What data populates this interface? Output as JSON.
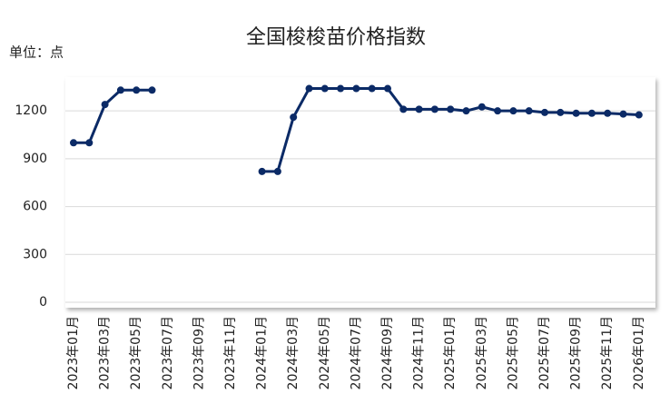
{
  "chart_data": {
    "type": "line",
    "title": "全国梭梭苗价格指数",
    "unit_label": "单位：点",
    "categories": [
      "2023年01月",
      null,
      "2023年03月",
      null,
      "2023年05月",
      null,
      "2023年07月",
      null,
      "2023年09月",
      null,
      "2023年11月",
      null,
      "2024年01月",
      null,
      "2024年03月",
      null,
      "2024年05月",
      null,
      "2024年07月",
      null,
      "2024年09月",
      null,
      "2024年11月",
      null,
      "2025年01月",
      null,
      "2025年03月",
      null,
      "2025年05月",
      null,
      "2025年07月",
      null,
      "2025年09月",
      null,
      "2025年11月",
      null,
      "2026年01月"
    ],
    "series": [
      {
        "name": "全国梭梭苗价格指数",
        "color": "#0b2a66",
        "values": [
          1000,
          1000,
          1240,
          1330,
          1330,
          1330,
          null,
          null,
          null,
          null,
          null,
          null,
          820,
          820,
          1160,
          1340,
          1340,
          1340,
          1340,
          1340,
          1340,
          1210,
          1210,
          1210,
          1210,
          1200,
          1225,
          1200,
          1200,
          1200,
          1190,
          1190,
          1185,
          1185,
          1185,
          1180,
          1175
        ]
      }
    ],
    "ylim": [
      0,
      1400
    ],
    "yticks": [
      0,
      300,
      600,
      900,
      1200
    ],
    "grid": true
  }
}
